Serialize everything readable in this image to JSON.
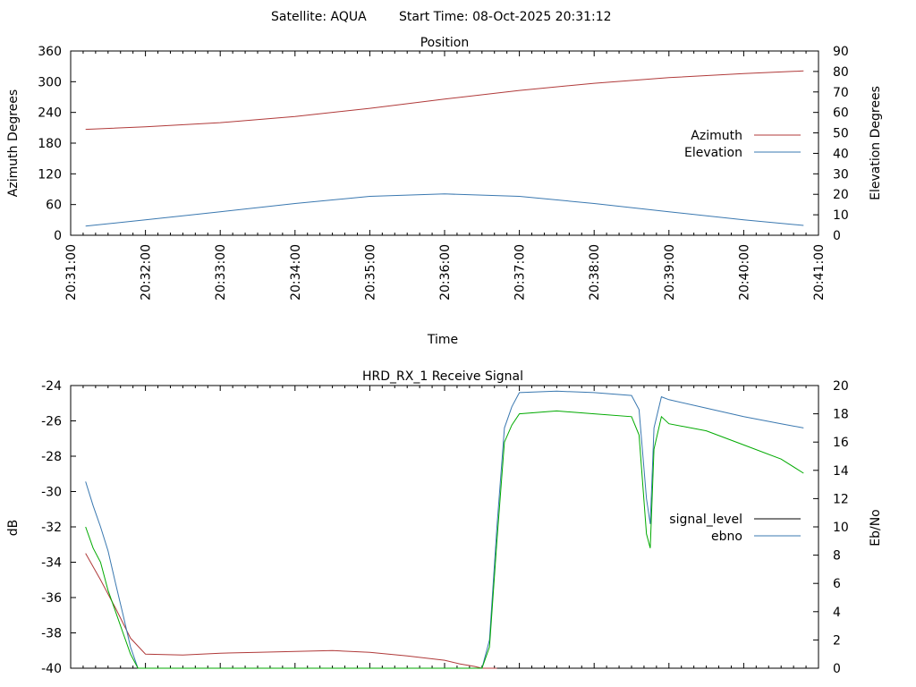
{
  "header": {
    "satellite": "Satellite: AQUA",
    "start_time": "Start Time: 08-Oct-2025 20:31:12"
  },
  "chart_data": [
    {
      "type": "line",
      "title": "Position",
      "xlabel": "Time",
      "ylabel": "Azimuth Degrees",
      "y2label": "Elevation Degrees",
      "x_ticks": [
        "20:31:00",
        "20:32:00",
        "20:33:00",
        "20:34:00",
        "20:35:00",
        "20:36:00",
        "20:37:00",
        "20:38:00",
        "20:39:00",
        "20:40:00",
        "20:41:00"
      ],
      "xlim": [
        "20:31:00",
        "20:41:00"
      ],
      "ylim": [
        0,
        360
      ],
      "y_ticks": [
        0,
        60,
        120,
        180,
        240,
        300,
        360
      ],
      "y2lim": [
        0,
        90
      ],
      "y2_ticks": [
        0,
        10,
        20,
        30,
        40,
        50,
        60,
        70,
        80,
        90
      ],
      "legend_position": "right",
      "grid": false,
      "x": [
        "20:31:12",
        "20:32:00",
        "20:33:00",
        "20:34:00",
        "20:35:00",
        "20:36:00",
        "20:37:00",
        "20:38:00",
        "20:39:00",
        "20:40:00",
        "20:40:48"
      ],
      "series": [
        {
          "name": "Azimuth",
          "axis": "left",
          "color": "#b03a3a",
          "values": [
            207,
            212,
            220,
            232,
            248,
            266,
            283,
            297,
            308,
            316,
            321
          ]
        },
        {
          "name": "Elevation",
          "axis": "right",
          "color": "#3a78b0",
          "values": [
            4.5,
            7.5,
            11.5,
            15.5,
            19,
            20.2,
            19,
            15.5,
            11.5,
            7.5,
            4.8
          ]
        }
      ]
    },
    {
      "type": "line",
      "title": "HRD_RX_1 Receive Signal",
      "ylabel": "dB",
      "y2label": "Eb/No",
      "ylim": [
        -40,
        -24
      ],
      "y_ticks": [
        -40,
        -38,
        -36,
        -34,
        -32,
        -30,
        -28,
        -26,
        -24
      ],
      "y2lim": [
        0,
        20
      ],
      "y2_ticks": [
        0,
        2,
        4,
        6,
        8,
        10,
        12,
        14,
        16,
        18,
        20
      ],
      "xlim": [
        "20:31:00",
        "20:41:00"
      ],
      "legend_position": "right",
      "grid": false,
      "series": [
        {
          "name": "signal_level",
          "axis": "left",
          "color": "#b03a3a",
          "x": [
            "20:31:12",
            "20:31:24",
            "20:31:36",
            "20:31:48",
            "20:32:00",
            "20:32:30",
            "20:33:00",
            "20:33:30",
            "20:34:00",
            "20:34:30",
            "20:35:00",
            "20:35:30",
            "20:36:00",
            "20:36:12",
            "20:36:24",
            "20:36:30",
            "20:36:36",
            "20:36:42"
          ],
          "values": [
            -33.5,
            -35.0,
            -36.6,
            -38.3,
            -39.2,
            -39.25,
            -39.15,
            -39.1,
            -39.05,
            -39.0,
            -39.1,
            -39.3,
            -39.55,
            -39.75,
            -39.9,
            -40.0,
            -40.1,
            -40.2
          ]
        },
        {
          "name": "ebno",
          "axis": "right",
          "color": "#3a78b0",
          "x": [
            "20:31:12",
            "20:31:18",
            "20:31:24",
            "20:31:30",
            "20:31:36",
            "20:31:42",
            "20:31:48",
            "20:31:54",
            "20:32:00",
            "20:36:30",
            "20:36:36",
            "20:36:42",
            "20:36:48",
            "20:36:54",
            "20:37:00",
            "20:37:30",
            "20:38:00",
            "20:38:30",
            "20:38:36",
            "20:38:42",
            "20:38:45",
            "20:38:48",
            "20:38:54",
            "20:39:00",
            "20:39:30",
            "20:40:00",
            "20:40:30",
            "20:40:48"
          ],
          "values": [
            13.2,
            11.5,
            10.0,
            8.3,
            6.0,
            3.8,
            1.5,
            -0.2,
            -0.5,
            -0.5,
            2.0,
            10.0,
            17.0,
            18.5,
            19.5,
            19.6,
            19.5,
            19.3,
            18.3,
            12.0,
            10.2,
            17.0,
            19.2,
            19.0,
            18.4,
            17.8,
            17.3,
            17.0
          ]
        },
        {
          "name": "",
          "axis": "right",
          "color": "#00aa00",
          "x": [
            "20:31:12",
            "20:31:18",
            "20:31:24",
            "20:31:30",
            "20:31:36",
            "20:31:42",
            "20:31:48",
            "20:31:54",
            "20:32:00",
            "20:36:30",
            "20:36:36",
            "20:36:42",
            "20:36:48",
            "20:36:54",
            "20:37:00",
            "20:37:30",
            "20:38:00",
            "20:38:30",
            "20:38:36",
            "20:38:42",
            "20:38:45",
            "20:38:48",
            "20:38:54",
            "20:39:00",
            "20:39:30",
            "20:40:00",
            "20:40:30",
            "20:40:48"
          ],
          "values": [
            10.0,
            8.5,
            7.5,
            5.5,
            4.0,
            2.5,
            1.0,
            -0.3,
            -0.5,
            -0.5,
            1.5,
            9.0,
            16.0,
            17.2,
            18.0,
            18.2,
            18.0,
            17.8,
            16.5,
            9.5,
            8.5,
            15.5,
            17.8,
            17.3,
            16.8,
            15.8,
            14.8,
            13.8
          ]
        }
      ]
    }
  ]
}
